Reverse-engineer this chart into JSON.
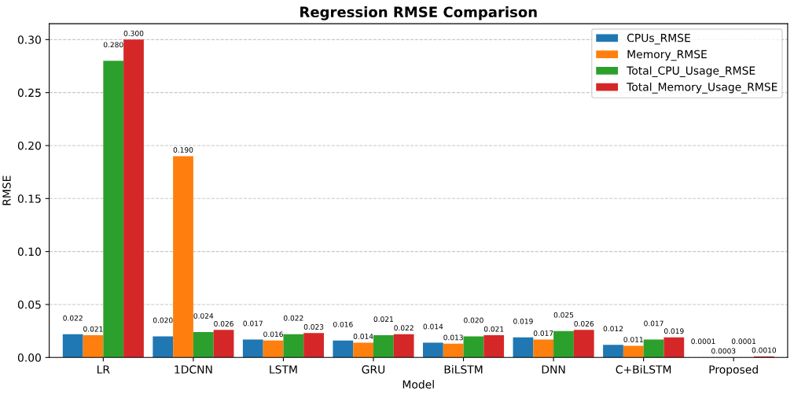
{
  "chart_data": {
    "type": "bar",
    "title": "Regression RMSE Comparison",
    "xlabel": "Model",
    "ylabel": "RMSE",
    "categories": [
      "LR",
      "1DCNN",
      "LSTM",
      "GRU",
      "BiLSTM",
      "DNN",
      "C+BiLSTM",
      "Proposed"
    ],
    "series": [
      {
        "name": "CPUs_RMSE",
        "color": "#1f77b4",
        "values": [
          0.022,
          0.02,
          0.017,
          0.016,
          0.014,
          0.019,
          0.012,
          0.0001
        ],
        "value_labels": [
          "0.022",
          "0.020",
          "0.017",
          "0.016",
          "0.014",
          "0.019",
          "0.012",
          "0.0001"
        ]
      },
      {
        "name": "Memory_RMSE",
        "color": "#ff7f0e",
        "values": [
          0.021,
          0.19,
          0.016,
          0.014,
          0.013,
          0.017,
          0.011,
          0.0003
        ],
        "value_labels": [
          "0.021",
          "0.190",
          "0.016",
          "0.014",
          "0.013",
          "0.017",
          "0.011",
          "0.0003"
        ]
      },
      {
        "name": "Total_CPU_Usage_RMSE",
        "color": "#2ca02c",
        "values": [
          0.28,
          0.024,
          0.022,
          0.021,
          0.02,
          0.025,
          0.017,
          0.0001
        ],
        "value_labels": [
          "0.280",
          "0.024",
          "0.022",
          "0.021",
          "0.020",
          "0.025",
          "0.017",
          "0.0001"
        ]
      },
      {
        "name": "Total_Memory_Usage_RMSE",
        "color": "#d62728",
        "values": [
          0.3,
          0.026,
          0.023,
          0.022,
          0.021,
          0.026,
          0.019,
          0.001
        ],
        "value_labels": [
          "0.300",
          "0.026",
          "0.023",
          "0.022",
          "0.021",
          "0.026",
          "0.019",
          "0.0010"
        ]
      }
    ],
    "ylim": [
      0,
      0.315
    ],
    "yticks": [
      {
        "value": 0,
        "label": "0.00"
      },
      {
        "value": 0.05,
        "label": "0.05"
      },
      {
        "value": 0.1,
        "label": "0.10"
      },
      {
        "value": 0.15,
        "label": "0.15"
      },
      {
        "value": 0.2,
        "label": "0.20"
      },
      {
        "value": 0.25,
        "label": "0.25"
      },
      {
        "value": 0.3,
        "label": "0.30"
      }
    ],
    "grid": "y",
    "legend": "top right"
  }
}
